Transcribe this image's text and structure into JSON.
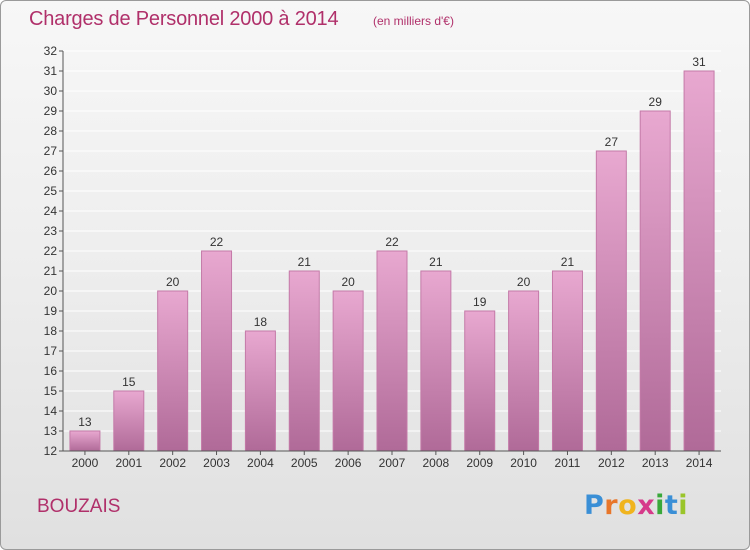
{
  "chart_title": "Charges de Personnel 2000 à 2014",
  "chart_subtitle": "(en milliers d'€)",
  "town": "BOUZAIS",
  "logo": {
    "letters": [
      "P",
      "r",
      "o",
      "x",
      "i",
      "t",
      "i"
    ],
    "colors": [
      "#3a8fd6",
      "#e8762a",
      "#f0b41e",
      "#d63a8a",
      "#3aa83a",
      "#3a8fd6",
      "#9ac52a"
    ]
  },
  "colors": {
    "title": "#b0306a",
    "bar_top": "#e8a8d0",
    "bar_bottom": "#b06a98",
    "bar_edge": "#c47aa8",
    "grid": "#ffffff",
    "axis": "#555555"
  },
  "chart_data": {
    "type": "bar",
    "categories": [
      "2000",
      "2001",
      "2002",
      "2003",
      "2004",
      "2005",
      "2006",
      "2007",
      "2008",
      "2009",
      "2010",
      "2011",
      "2012",
      "2013",
      "2014"
    ],
    "values": [
      13,
      15,
      20,
      22,
      18,
      21,
      20,
      22,
      21,
      19,
      20,
      21,
      27,
      29,
      31
    ],
    "ylim": [
      12,
      32
    ],
    "yticks": [
      12,
      13,
      14,
      15,
      16,
      17,
      18,
      19,
      20,
      21,
      22,
      23,
      24,
      25,
      26,
      27,
      28,
      29,
      30,
      31,
      32
    ],
    "grid": true,
    "title": "Charges de Personnel 2000 à 2014",
    "xlabel": "",
    "ylabel": ""
  }
}
